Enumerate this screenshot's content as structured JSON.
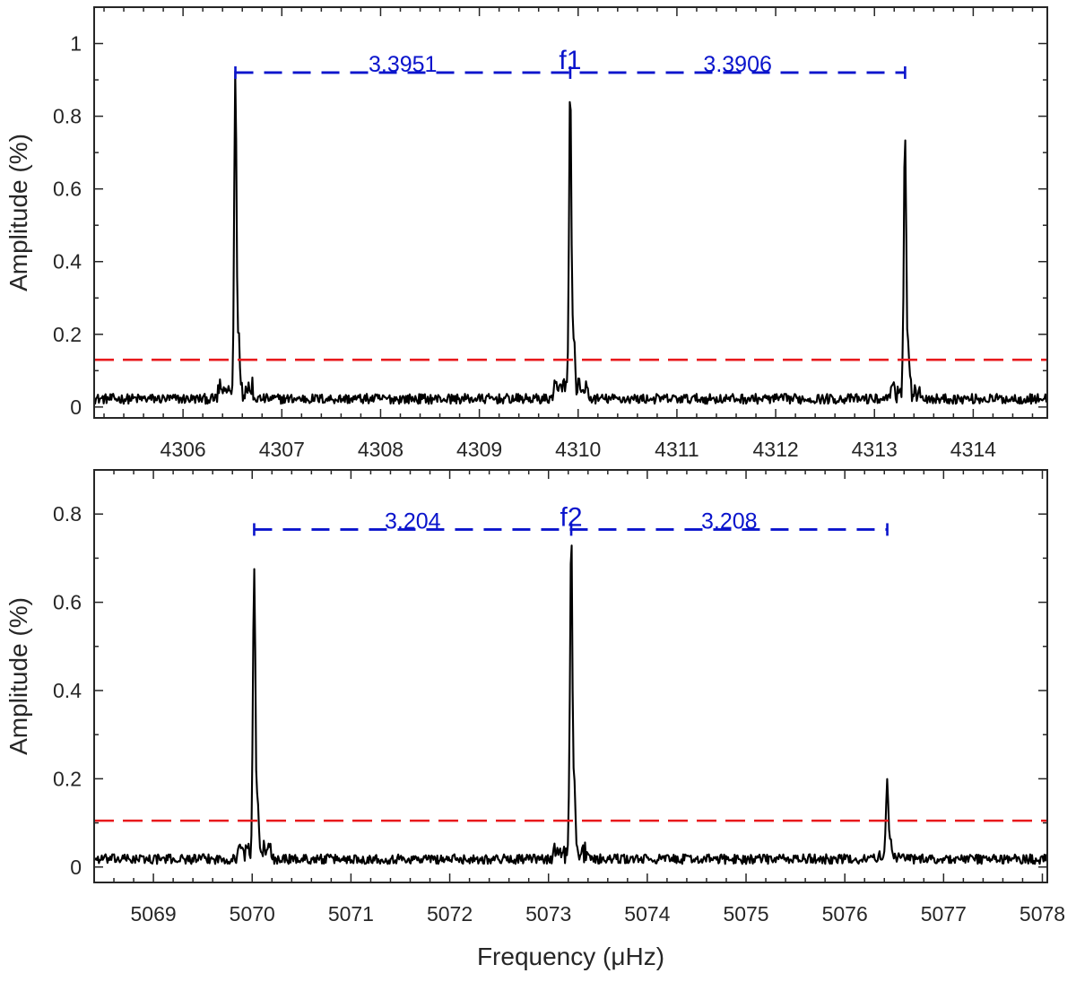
{
  "chart_data": [
    {
      "type": "line",
      "xlabel": "",
      "ylabel": "Amplitude (%)",
      "xlim": [
        4305.1,
        4314.75
      ],
      "ylim": [
        -0.03,
        1.1
      ],
      "xticks": [
        "4306",
        "4307",
        "4308",
        "4309",
        "4310",
        "4311",
        "4312",
        "4313",
        "4314"
      ],
      "yticks": [
        "0",
        "0.2",
        "0.4",
        "0.6",
        "0.8",
        "1"
      ],
      "threshold": 0.13,
      "noise_level": 0.025,
      "peaks": [
        {
          "x": 4306.53,
          "y": 0.87
        },
        {
          "x": 4309.92,
          "y": 0.83
        },
        {
          "x": 4313.31,
          "y": 0.72
        }
      ],
      "splitting": {
        "y": 0.92,
        "center_label": "f1",
        "left": {
          "from": 4306.53,
          "to": 4309.92,
          "label": "3.3951"
        },
        "right": {
          "from": 4309.92,
          "to": 4313.31,
          "label": "3.3906"
        }
      }
    },
    {
      "type": "line",
      "xlabel": "Frequency (μHz)",
      "ylabel": "Amplitude (%)",
      "xlim": [
        5068.4,
        5078.05
      ],
      "ylim": [
        -0.035,
        0.9
      ],
      "xticks": [
        "5069",
        "5070",
        "5071",
        "5072",
        "5073",
        "5074",
        "5075",
        "5076",
        "5077",
        "5078"
      ],
      "yticks": [
        "0",
        "0.2",
        "0.4",
        "0.6",
        "0.8"
      ],
      "threshold": 0.105,
      "noise_level": 0.02,
      "peaks": [
        {
          "x": 5070.02,
          "y": 0.64
        },
        {
          "x": 5073.23,
          "y": 0.73
        },
        {
          "x": 5076.43,
          "y": 0.175
        }
      ],
      "splitting": {
        "y": 0.765,
        "center_label": "f2",
        "left": {
          "from": 5070.02,
          "to": 5073.23,
          "label": "3.204"
        },
        "right": {
          "from": 5073.23,
          "to": 5076.43,
          "label": "3.208"
        }
      }
    }
  ],
  "colors": {
    "signal": "#000000",
    "threshold": "#e8191c",
    "annotation": "#0a14cc",
    "axis": "#262626"
  }
}
